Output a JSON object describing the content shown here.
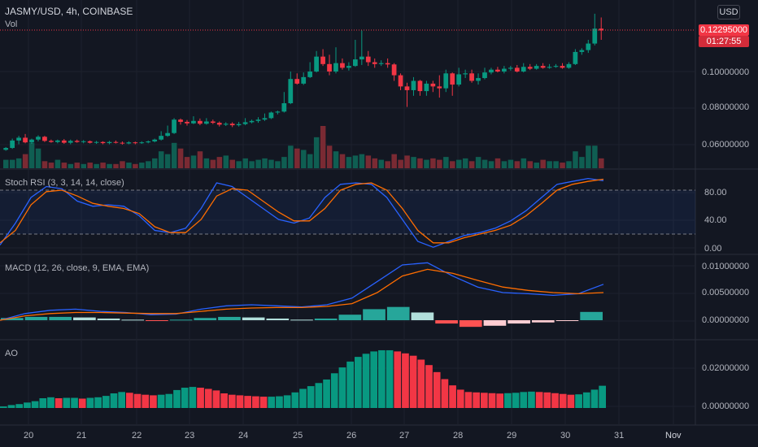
{
  "header": {
    "symbol": "JASMY/USD, 4h, COINBASE",
    "vol_label": "Vol"
  },
  "currency_button": "USD",
  "price_axis": {
    "labels": [
      "0.10000000",
      "0.08000000",
      "0.06000000"
    ],
    "current_price": "0.12295000",
    "countdown": "01:27:55"
  },
  "stoch_rsi": {
    "title": "Stoch RSI (3, 3, 14, 14, close)",
    "axis": [
      "80.00",
      "40.00",
      "0.00"
    ],
    "k_values": [
      5,
      35,
      70,
      85,
      82,
      65,
      58,
      60,
      58,
      45,
      25,
      22,
      28,
      55,
      90,
      85,
      70,
      55,
      40,
      35,
      42,
      70,
      88,
      90,
      88,
      70,
      40,
      10,
      2,
      10,
      18,
      22,
      28,
      38,
      52,
      70,
      88,
      92,
      96,
      93
    ],
    "d_values": [
      8,
      25,
      60,
      78,
      80,
      72,
      62,
      58,
      55,
      48,
      30,
      22,
      22,
      40,
      72,
      82,
      80,
      65,
      50,
      38,
      38,
      55,
      80,
      88,
      90,
      80,
      55,
      25,
      8,
      8,
      15,
      20,
      25,
      32,
      45,
      62,
      80,
      88,
      92,
      95
    ]
  },
  "macd": {
    "title": "MACD (12, 26, close, 9, EMA, EMA)",
    "axis": [
      "0.01000000",
      "0.00500000",
      "0.00000000"
    ],
    "macd_line": [
      0.0,
      0.0012,
      0.0018,
      0.002,
      0.0016,
      0.0014,
      0.001,
      0.0011,
      0.002,
      0.0026,
      0.0028,
      0.0026,
      0.0024,
      0.0028,
      0.004,
      0.007,
      0.01,
      0.0104,
      0.008,
      0.006,
      0.005,
      0.0048,
      0.0045,
      0.0048,
      0.0065
    ],
    "signal_line": [
      0.0,
      0.0008,
      0.0012,
      0.0014,
      0.0014,
      0.0013,
      0.0012,
      0.0012,
      0.0016,
      0.002,
      0.0022,
      0.0023,
      0.0023,
      0.0025,
      0.003,
      0.005,
      0.008,
      0.0092,
      0.0085,
      0.0072,
      0.006,
      0.0054,
      0.005,
      0.0048,
      0.005
    ],
    "histogram": [
      0.0004,
      0.0006,
      0.0006,
      0.0005,
      0.0003,
      0.0001,
      -0.0001,
      0.0001,
      0.0004,
      0.0006,
      0.0005,
      0.0003,
      0.0001,
      0.0003,
      0.001,
      0.002,
      0.0024,
      0.0014,
      -0.0006,
      -0.0012,
      -0.001,
      -0.0006,
      -0.0004,
      -0.0001,
      0.0015
    ]
  },
  "ao": {
    "title": "AO",
    "axis": [
      "0.02000000",
      "0.00000000"
    ],
    "values": [
      0.0008,
      0.0015,
      0.002,
      0.0028,
      0.0035,
      0.005,
      0.0055,
      0.005,
      0.0052,
      0.0052,
      0.0048,
      0.0052,
      0.0055,
      0.0062,
      0.0075,
      0.0082,
      0.0078,
      0.0072,
      0.0068,
      0.0065,
      0.0068,
      0.0072,
      0.0092,
      0.0104,
      0.0108,
      0.0104,
      0.0098,
      0.009,
      0.0075,
      0.0068,
      0.0065,
      0.0062,
      0.006,
      0.0058,
      0.0058,
      0.006,
      0.0065,
      0.008,
      0.0098,
      0.0112,
      0.0128,
      0.0146,
      0.0178,
      0.0208,
      0.0238,
      0.0262,
      0.0278,
      0.029,
      0.0296,
      0.0296,
      0.029,
      0.028,
      0.0268,
      0.0248,
      0.022,
      0.0184,
      0.0148,
      0.0116,
      0.0094,
      0.0082,
      0.008,
      0.0078,
      0.0076,
      0.0074,
      0.0076,
      0.0078,
      0.0082,
      0.0084,
      0.0082,
      0.008,
      0.0076,
      0.0072,
      0.0068,
      0.007,
      0.008,
      0.0094,
      0.0114
    ]
  },
  "price_series": {
    "candles": [
      [
        0.059,
        0.06,
        0.0585,
        0.0605
      ],
      [
        0.06,
        0.064,
        0.0595,
        0.065
      ],
      [
        0.064,
        0.0655,
        0.062,
        0.0665
      ],
      [
        0.0655,
        0.063,
        0.0625,
        0.0675
      ],
      [
        0.063,
        0.0645,
        0.0622,
        0.065
      ],
      [
        0.0645,
        0.066,
        0.0635,
        0.0668
      ],
      [
        0.066,
        0.0638,
        0.0632,
        0.0665
      ],
      [
        0.0638,
        0.0632,
        0.0628,
        0.0645
      ],
      [
        0.0632,
        0.064,
        0.0625,
        0.0645
      ],
      [
        0.064,
        0.0628,
        0.0622,
        0.0648
      ],
      [
        0.0628,
        0.0638,
        0.062,
        0.0645
      ],
      [
        0.0638,
        0.0632,
        0.0628,
        0.0645
      ],
      [
        0.0632,
        0.0636,
        0.0625,
        0.0642
      ],
      [
        0.0636,
        0.0628,
        0.0624,
        0.064
      ],
      [
        0.0628,
        0.0632,
        0.0622,
        0.0638
      ],
      [
        0.0632,
        0.0626,
        0.062,
        0.0636
      ],
      [
        0.0626,
        0.0632,
        0.062,
        0.0638
      ],
      [
        0.0632,
        0.0628,
        0.0624,
        0.064
      ],
      [
        0.0628,
        0.0624,
        0.0618,
        0.0635
      ],
      [
        0.0624,
        0.063,
        0.062,
        0.0636
      ],
      [
        0.063,
        0.0626,
        0.062,
        0.0634
      ],
      [
        0.0626,
        0.063,
        0.0622,
        0.0636
      ],
      [
        0.063,
        0.0635,
        0.0625,
        0.064
      ],
      [
        0.0635,
        0.0645,
        0.063,
        0.065
      ],
      [
        0.0645,
        0.0665,
        0.064,
        0.069
      ],
      [
        0.0665,
        0.068,
        0.066,
        0.072
      ],
      [
        0.068,
        0.0752,
        0.0675,
        0.076
      ],
      [
        0.0752,
        0.074,
        0.0725,
        0.0758
      ],
      [
        0.074,
        0.0732,
        0.072,
        0.075
      ],
      [
        0.0732,
        0.0745,
        0.0728,
        0.077
      ],
      [
        0.0745,
        0.073,
        0.0722,
        0.0758
      ],
      [
        0.073,
        0.0742,
        0.0725,
        0.076
      ],
      [
        0.0742,
        0.0735,
        0.0728,
        0.0752
      ],
      [
        0.0735,
        0.0725,
        0.0715,
        0.0742
      ],
      [
        0.0725,
        0.073,
        0.0718,
        0.0738
      ],
      [
        0.073,
        0.0722,
        0.0712,
        0.0738
      ],
      [
        0.0722,
        0.0728,
        0.0715,
        0.074
      ],
      [
        0.0728,
        0.0738,
        0.0722,
        0.076
      ],
      [
        0.0738,
        0.0745,
        0.0732,
        0.0752
      ],
      [
        0.0745,
        0.0752,
        0.0735,
        0.0765
      ],
      [
        0.0752,
        0.076,
        0.0745,
        0.0785
      ],
      [
        0.076,
        0.079,
        0.0755,
        0.0795
      ],
      [
        0.079,
        0.0795,
        0.078,
        0.08
      ],
      [
        0.0795,
        0.084,
        0.079,
        0.09
      ],
      [
        0.084,
        0.097,
        0.0835,
        0.101
      ],
      [
        0.097,
        0.0945,
        0.094,
        0.1
      ],
      [
        0.0945,
        0.098,
        0.0938,
        0.1005
      ],
      [
        0.098,
        0.101,
        0.0975,
        0.106
      ],
      [
        0.101,
        0.109,
        0.1005,
        0.112
      ],
      [
        0.109,
        0.105,
        0.104,
        0.113
      ],
      [
        0.105,
        0.101,
        0.099,
        0.11
      ],
      [
        0.101,
        0.1055,
        0.1,
        0.114
      ],
      [
        0.1055,
        0.103,
        0.102,
        0.108
      ],
      [
        0.103,
        0.104,
        0.1015,
        0.106
      ],
      [
        0.104,
        0.1075,
        0.1035,
        0.118
      ],
      [
        0.1075,
        0.109,
        0.1045,
        0.123
      ],
      [
        0.109,
        0.106,
        0.104,
        0.112
      ],
      [
        0.106,
        0.105,
        0.103,
        0.108
      ],
      [
        0.105,
        0.1055,
        0.104,
        0.107
      ],
      [
        0.1055,
        0.1048,
        0.103,
        0.108
      ],
      [
        0.1048,
        0.099,
        0.096,
        0.1055
      ],
      [
        0.099,
        0.093,
        0.091,
        0.1
      ],
      [
        0.093,
        0.091,
        0.082,
        0.095
      ],
      [
        0.091,
        0.096,
        0.088,
        0.098
      ],
      [
        0.096,
        0.0905,
        0.088,
        0.0965
      ],
      [
        0.0905,
        0.0945,
        0.088,
        0.096
      ],
      [
        0.0945,
        0.093,
        0.09,
        0.096
      ],
      [
        0.093,
        0.092,
        0.087,
        0.099
      ],
      [
        0.092,
        0.1,
        0.09,
        0.102
      ],
      [
        0.1,
        0.094,
        0.088,
        0.1005
      ],
      [
        0.094,
        0.0995,
        0.093,
        0.103
      ],
      [
        0.0995,
        0.1,
        0.0975,
        0.102
      ],
      [
        0.1,
        0.096,
        0.095,
        0.102
      ],
      [
        0.096,
        0.0975,
        0.094,
        0.1
      ],
      [
        0.0975,
        0.1005,
        0.0968,
        0.103
      ],
      [
        0.1005,
        0.102,
        0.0995,
        0.103
      ],
      [
        0.102,
        0.101,
        0.1005,
        0.1035
      ],
      [
        0.101,
        0.1025,
        0.1,
        0.104
      ],
      [
        0.1025,
        0.103,
        0.1015,
        0.104
      ],
      [
        0.103,
        0.101,
        0.1005,
        0.1045
      ],
      [
        0.101,
        0.1035,
        0.1005,
        0.1055
      ],
      [
        0.1035,
        0.1025,
        0.1018,
        0.105
      ],
      [
        0.1025,
        0.104,
        0.102,
        0.105
      ],
      [
        0.104,
        0.103,
        0.1025,
        0.1055
      ],
      [
        0.103,
        0.1035,
        0.1025,
        0.105
      ],
      [
        0.1035,
        0.104,
        0.103,
        0.105
      ],
      [
        0.104,
        0.103,
        0.1025,
        0.1055
      ],
      [
        0.103,
        0.105,
        0.1025,
        0.106
      ],
      [
        0.105,
        0.1115,
        0.1045,
        0.113
      ],
      [
        0.1115,
        0.1125,
        0.11,
        0.1135
      ],
      [
        0.1125,
        0.116,
        0.111,
        0.118
      ],
      [
        0.116,
        0.124,
        0.115,
        0.132
      ],
      [
        0.124,
        0.123,
        0.118,
        0.13
      ]
    ],
    "volume": [
      6,
      6,
      7,
      10,
      18,
      14,
      5,
      4,
      6,
      4,
      3,
      4,
      3,
      4,
      3,
      4,
      3,
      3,
      5,
      4,
      3,
      4,
      5,
      7,
      12,
      10,
      18,
      14,
      8,
      9,
      12,
      7,
      6,
      8,
      9,
      6,
      5,
      7,
      5,
      6,
      7,
      6,
      5,
      8,
      16,
      14,
      13,
      10,
      22,
      30,
      16,
      12,
      10,
      8,
      9,
      10,
      9,
      7,
      6,
      5,
      10,
      6,
      9,
      8,
      7,
      6,
      7,
      6,
      8,
      5,
      6,
      7,
      5,
      8,
      6,
      5,
      7,
      5,
      6,
      5,
      7,
      5,
      4,
      6,
      5,
      5,
      4,
      5,
      12,
      8,
      16,
      16,
      7
    ]
  },
  "time_axis": [
    "20",
    "21",
    "22",
    "23",
    "24",
    "25",
    "26",
    "27",
    "28",
    "29",
    "30",
    "31",
    "Nov"
  ],
  "colors": {
    "up": "#089981",
    "down": "#f23645",
    "k_line": "#2962ff",
    "d_line": "#ff6d00",
    "band": "#2962ff"
  }
}
